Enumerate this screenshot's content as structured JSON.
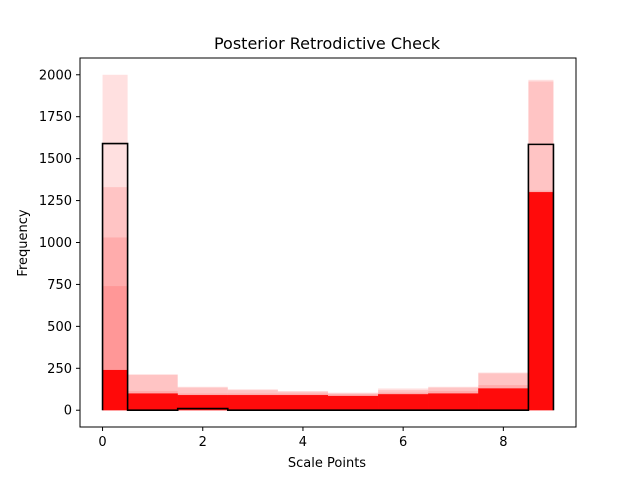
{
  "chart_data": {
    "type": "bar",
    "title": "Posterior Retrodictive Check",
    "xlabel": "Scale Points",
    "ylabel": "Frequency",
    "xlim": [
      -0.45,
      9.45
    ],
    "ylim": [
      -100,
      2100
    ],
    "xticks": [
      0,
      2,
      4,
      6,
      8
    ],
    "yticks": [
      0,
      250,
      500,
      750,
      1000,
      1250,
      1500,
      1750,
      2000
    ],
    "grid": false,
    "colors": {
      "simulated": "#ff0000",
      "observed": "#000000"
    },
    "simulated_bins": [
      {
        "x0": 0.0,
        "x1": 0.5,
        "draws": [
          2000,
          1330,
          1030,
          740,
          240
        ]
      },
      {
        "x0": 0.5,
        "x1": 1.5,
        "draws": [
          215,
          210,
          115,
          100
        ]
      },
      {
        "x0": 1.5,
        "x1": 2.5,
        "draws": [
          140,
          135,
          100,
          90
        ]
      },
      {
        "x0": 2.5,
        "x1": 3.5,
        "draws": [
          125,
          120,
          100,
          90
        ]
      },
      {
        "x0": 3.5,
        "x1": 4.5,
        "draws": [
          115,
          110,
          100,
          90
        ]
      },
      {
        "x0": 4.5,
        "x1": 5.5,
        "draws": [
          105,
          100,
          95,
          85
        ]
      },
      {
        "x0": 5.5,
        "x1": 6.5,
        "draws": [
          130,
          120,
          105,
          95
        ]
      },
      {
        "x0": 6.5,
        "x1": 7.5,
        "draws": [
          140,
          135,
          115,
          100
        ]
      },
      {
        "x0": 7.5,
        "x1": 8.5,
        "draws": [
          225,
          220,
          150,
          130
        ]
      },
      {
        "x0": 8.5,
        "x1": 9.0,
        "draws": [
          1970,
          1960,
          1310,
          1300
        ]
      }
    ],
    "observed_step": {
      "edges": [
        0.0,
        0.5,
        1.5,
        2.5,
        3.5,
        4.5,
        5.5,
        6.5,
        7.5,
        8.5,
        9.0
      ],
      "values": [
        1590,
        0,
        10,
        0,
        0,
        0,
        0,
        0,
        0,
        1585
      ]
    }
  }
}
